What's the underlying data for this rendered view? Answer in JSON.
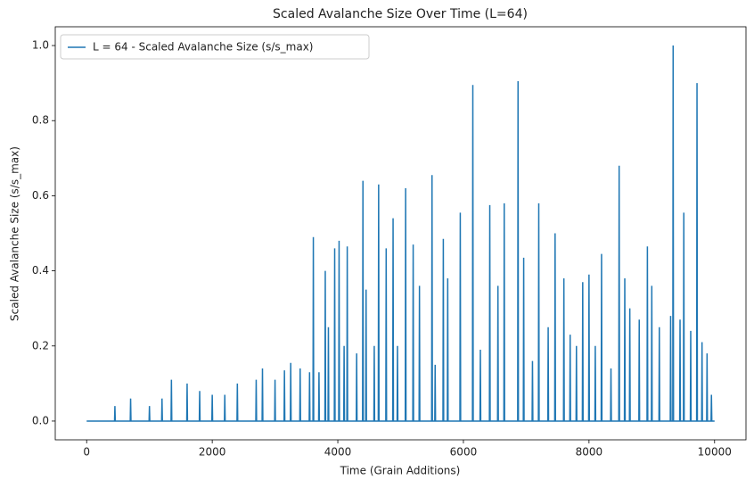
{
  "chart_data": {
    "type": "line",
    "title": "Scaled Avalanche Size Over Time (L=64)",
    "x_label": "Time (Grain Additions)",
    "y_label": "Scaled Avalanche Size (s/s_max)",
    "xlim": [
      -500,
      10500
    ],
    "ylim": [
      -0.05,
      1.05
    ],
    "xticks": [
      0,
      2000,
      4000,
      6000,
      8000,
      10000
    ],
    "yticks": [
      {
        "value": 0,
        "label": "0.0"
      },
      {
        "value": 0.2,
        "label": "0.2"
      },
      {
        "value": 0.4,
        "label": "0.4"
      },
      {
        "value": 0.6,
        "label": "0.6"
      },
      {
        "value": 0.8,
        "label": "0.8"
      },
      {
        "value": 1,
        "label": "1.0"
      }
    ],
    "legend": "upper left",
    "x": [
      0,
      444,
      450,
      456,
      694,
      700,
      706,
      994,
      1000,
      1006,
      1194,
      1200,
      1206,
      1344,
      1350,
      1356,
      1594,
      1600,
      1606,
      1794,
      1800,
      1806,
      1994,
      2000,
      2006,
      2194,
      2200,
      2206,
      2394,
      2400,
      2406,
      2694,
      2700,
      2706,
      2794,
      2800,
      2806,
      2994,
      3000,
      3006,
      3144,
      3150,
      3156,
      3244,
      3250,
      3256,
      3394,
      3400,
      3406,
      3544,
      3550,
      3556,
      3604,
      3610,
      3616,
      3694,
      3700,
      3706,
      3794,
      3800,
      3806,
      3844,
      3850,
      3856,
      3944,
      3950,
      3956,
      4014,
      4020,
      4026,
      4094,
      4100,
      4106,
      4144,
      4150,
      4156,
      4294,
      4300,
      4306,
      4394,
      4400,
      4406,
      4444,
      4450,
      4456,
      4574,
      4580,
      4586,
      4644,
      4650,
      4656,
      4764,
      4770,
      4776,
      4874,
      4880,
      4886,
      4944,
      4950,
      4956,
      5074,
      5080,
      5086,
      5194,
      5200,
      5206,
      5294,
      5300,
      5306,
      5494,
      5500,
      5506,
      5544,
      5550,
      5556,
      5674,
      5680,
      5686,
      5744,
      5750,
      5756,
      5944,
      5950,
      5956,
      6144,
      6150,
      6156,
      6264,
      6270,
      6276,
      6414,
      6420,
      6426,
      6544,
      6550,
      6556,
      6644,
      6650,
      6656,
      6864,
      6870,
      6876,
      6954,
      6960,
      6966,
      7094,
      7100,
      7106,
      7194,
      7200,
      7206,
      7344,
      7350,
      7356,
      7454,
      7460,
      7466,
      7594,
      7600,
      7606,
      7694,
      7700,
      7706,
      7794,
      7800,
      7806,
      7894,
      7900,
      7906,
      7994,
      8000,
      8006,
      8094,
      8100,
      8106,
      8194,
      8200,
      8206,
      8344,
      8350,
      8356,
      8474,
      8480,
      8486,
      8564,
      8570,
      8576,
      8644,
      8650,
      8656,
      8794,
      8800,
      8806,
      8924,
      8930,
      8936,
      8994,
      9000,
      9006,
      9114,
      9120,
      9126,
      9294,
      9300,
      9306,
      9334,
      9340,
      9346,
      9444,
      9450,
      9456,
      9504,
      9510,
      9516,
      9614,
      9620,
      9626,
      9714,
      9720,
      9726,
      9794,
      9800,
      9806,
      9874,
      9880,
      9886,
      9944,
      9950,
      9956,
      10000
    ],
    "series": [
      {
        "name": "L = 64 - Scaled Avalanche Size (s/s_max)",
        "color": "#1f77b4",
        "values": [
          0,
          0,
          0.04,
          0,
          0,
          0.06,
          0,
          0,
          0.04,
          0,
          0,
          0.06,
          0,
          0,
          0.11,
          0,
          0,
          0.1,
          0,
          0,
          0.08,
          0,
          0,
          0.07,
          0,
          0,
          0.07,
          0,
          0,
          0.1,
          0,
          0,
          0.11,
          0,
          0,
          0.14,
          0,
          0,
          0.11,
          0,
          0,
          0.135,
          0,
          0,
          0.155,
          0,
          0,
          0.14,
          0,
          0,
          0.13,
          0,
          0,
          0.49,
          0,
          0,
          0.13,
          0,
          0,
          0.4,
          0,
          0,
          0.25,
          0,
          0,
          0.46,
          0,
          0,
          0.48,
          0,
          0,
          0.2,
          0,
          0,
          0.465,
          0,
          0,
          0.18,
          0,
          0,
          0.64,
          0,
          0,
          0.35,
          0,
          0,
          0.2,
          0,
          0,
          0.63,
          0,
          0,
          0.46,
          0,
          0,
          0.54,
          0,
          0,
          0.2,
          0,
          0,
          0.62,
          0,
          0,
          0.47,
          0,
          0,
          0.36,
          0,
          0,
          0.655,
          0,
          0,
          0.15,
          0,
          0,
          0.485,
          0,
          0,
          0.38,
          0,
          0,
          0.555,
          0,
          0,
          0.895,
          0,
          0,
          0.19,
          0,
          0,
          0.575,
          0,
          0,
          0.36,
          0,
          0,
          0.58,
          0,
          0,
          0.905,
          0,
          0,
          0.435,
          0,
          0,
          0.16,
          0,
          0,
          0.58,
          0,
          0,
          0.25,
          0,
          0,
          0.5,
          0,
          0,
          0.38,
          0,
          0,
          0.23,
          0,
          0,
          0.2,
          0,
          0,
          0.37,
          0,
          0,
          0.39,
          0,
          0,
          0.2,
          0,
          0,
          0.445,
          0,
          0,
          0.14,
          0,
          0,
          0.68,
          0,
          0,
          0.38,
          0,
          0,
          0.3,
          0,
          0,
          0.27,
          0,
          0,
          0.465,
          0,
          0,
          0.36,
          0,
          0,
          0.25,
          0,
          0,
          0.28,
          0,
          0,
          1.0,
          0,
          0,
          0.27,
          0,
          0,
          0.555,
          0,
          0,
          0.24,
          0,
          0,
          0.9,
          0,
          0,
          0.21,
          0,
          0,
          0.18,
          0,
          0,
          0.07,
          0,
          0
        ]
      }
    ]
  }
}
